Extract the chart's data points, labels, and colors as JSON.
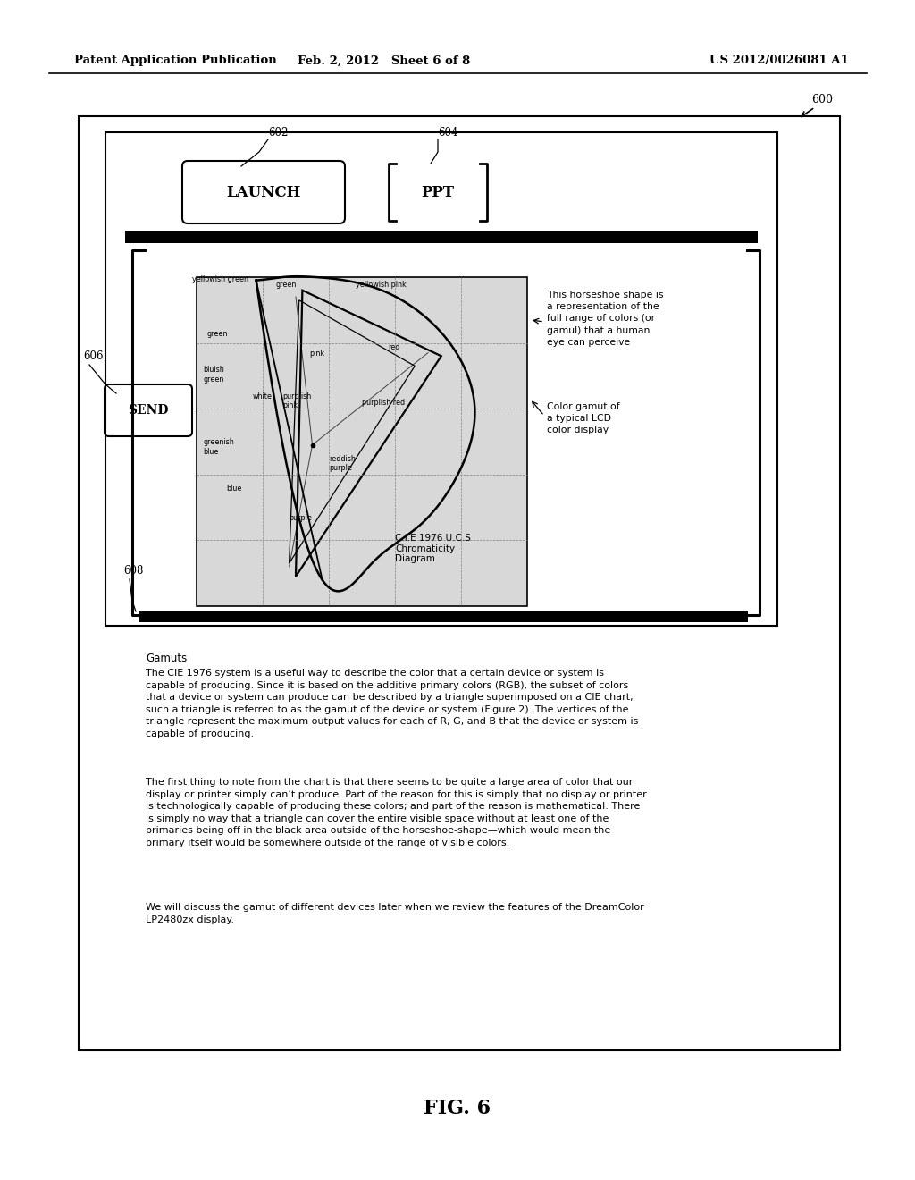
{
  "header_left": "Patent Application Publication",
  "header_mid": "Feb. 2, 2012   Sheet 6 of 8",
  "header_right": "US 2012/0026081 A1",
  "fig_label": "FIG. 6",
  "ref_600": "600",
  "ref_602": "602",
  "ref_604": "604",
  "ref_606": "606",
  "ref_608": "608",
  "launch_text": "LAUNCH",
  "ppt_text": "PPT",
  "send_text": "SEND",
  "cie_label": "C.I.E 1976 U.C.S\nChromaticity\nDiagram",
  "annotation1": "This horseshoe shape is\na representation of the\nfull range of colors (or\ngamul) that a human\neye can perceive",
  "annotation2": "Color gamut of\na typical LCD\ncolor display",
  "body_title": "Gamuts",
  "body_para1": "The CIE 1976 system is a useful way to describe the color that a certain device or system is\ncapable of producing. Since it is based on the additive primary colors (RGB), the subset of colors\nthat a device or system can produce can be described by a triangle superimposed on a CIE chart;\nsuch a triangle is referred to as the gamut of the device or system (Figure 2). The vertices of the\ntriangle represent the maximum output values for each of R, G, and B that the device or system is\ncapable of producing.",
  "body_para2": "The first thing to note from the chart is that there seems to be quite a large area of color that our\ndisplay or printer simply can’t produce. Part of the reason for this is simply that no display or printer\nis technologically capable of producing these colors; and part of the reason is mathematical. There\nis simply no way that a triangle can cover the entire visible space without at least one of the\nprimaries being off in the black area outside of the horseshoe-shape—which would mean the\nprimary itself would be somewhere outside of the range of visible colors.",
  "body_para3": "We will discuss the gamut of different devices later when we review the features of the DreamColor\nLP2480zx display.",
  "bg_color": "#ffffff"
}
